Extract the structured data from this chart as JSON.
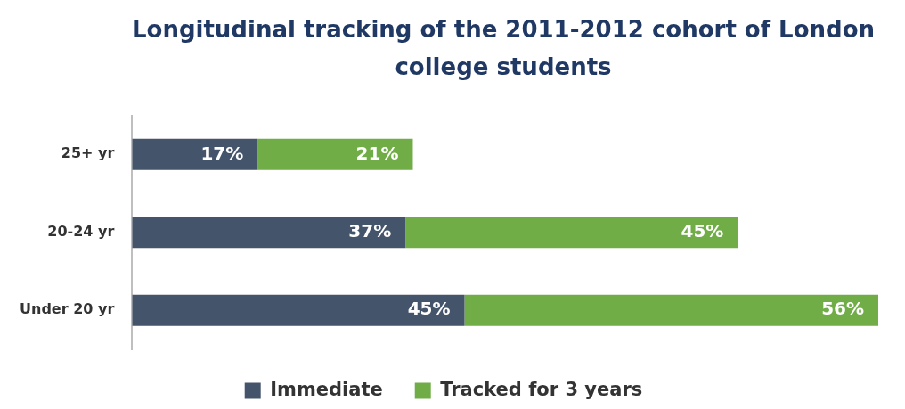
{
  "chart_data": {
    "type": "bar",
    "orientation": "horizontal",
    "stacked": true,
    "title": "Longitudinal tracking of the 2011-2012 cohort of London college students",
    "categories": [
      "25+ yr",
      "20-24 yr",
      "Under 20 yr"
    ],
    "series": [
      {
        "name": "Immediate",
        "color": "#44546a",
        "values": [
          17,
          37,
          45
        ],
        "value_labels": [
          "17%",
          "37%",
          "45%"
        ]
      },
      {
        "name": "Tracked for 3 years",
        "color": "#70ad47",
        "values": [
          21,
          45,
          56
        ],
        "value_labels": [
          "21%",
          "45%",
          "56%"
        ]
      }
    ],
    "legend": "bottom"
  }
}
